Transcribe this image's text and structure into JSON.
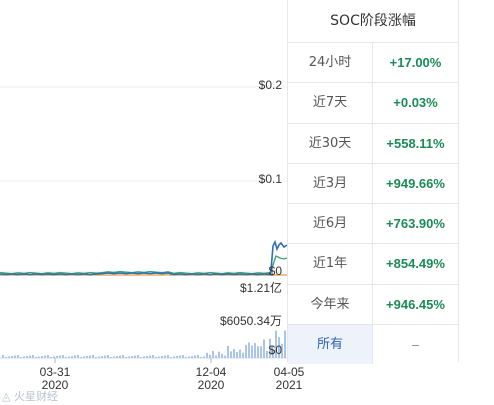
{
  "panel": {
    "title": "SOC阶段涨幅",
    "rows": [
      {
        "period": "24小时",
        "change": "+17.00%"
      },
      {
        "period": "近7天",
        "change": "+0.03%"
      },
      {
        "period": "近30天",
        "change": "+558.11%"
      },
      {
        "period": "近3月",
        "change": "+949.66%"
      },
      {
        "period": "近6月",
        "change": "+763.90%"
      },
      {
        "period": "近1年",
        "change": "+854.49%"
      },
      {
        "period": "今年来",
        "change": "+946.45%"
      },
      {
        "period": "所有",
        "change": "–"
      }
    ]
  },
  "chart": {
    "price_axis": [
      "$0.2",
      "$0.1",
      "$0"
    ],
    "volume_axis": [
      "$1.21亿",
      "$6050.34万",
      "$0"
    ],
    "dates": [
      {
        "day": "03-31",
        "year": "2020"
      },
      {
        "day": "12-04",
        "year": "2020"
      },
      {
        "day": "04-05",
        "year": "2021"
      }
    ],
    "watermark": "火星财经"
  },
  "colors": {
    "price_line": "#2f6fb3",
    "market_cap_line": "#39a36a",
    "other_line": "#e39a4b",
    "volume_bar": "#a9c6ea",
    "positive": "#1b8a56"
  }
}
